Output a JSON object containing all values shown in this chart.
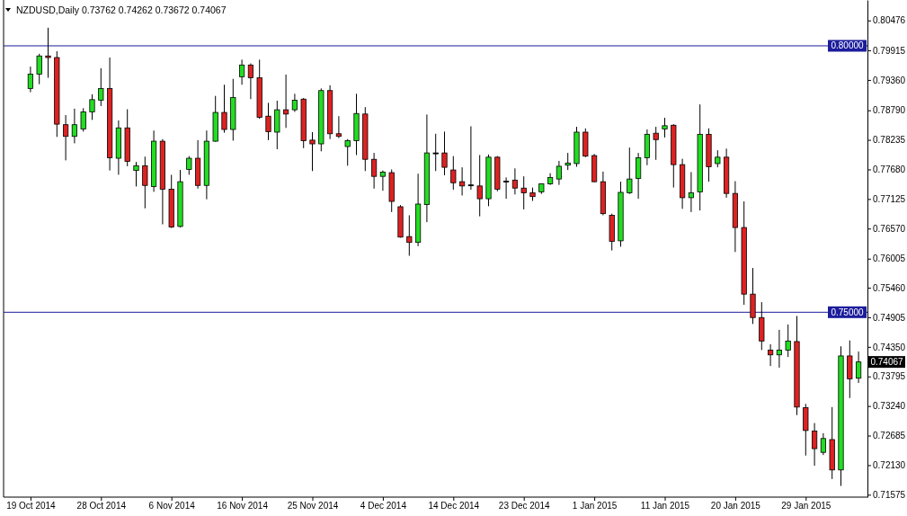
{
  "chart_data": {
    "type": "candlestick",
    "title": "NZDUSD,Daily 0.73762 0.74262 0.73672 0.74067",
    "categories": [
      "19 Oct 2014",
      null,
      null,
      null,
      null,
      null,
      null,
      null,
      "28 Oct 2014",
      null,
      null,
      null,
      null,
      null,
      null,
      null,
      "6 Nov 2014",
      null,
      null,
      null,
      null,
      null,
      null,
      null,
      "16 Nov 2014",
      null,
      null,
      null,
      null,
      null,
      null,
      null,
      "25 Nov 2014",
      null,
      null,
      null,
      null,
      null,
      null,
      null,
      "4 Dec 2014",
      null,
      null,
      null,
      null,
      null,
      null,
      null,
      "14 Dec 2014",
      null,
      null,
      null,
      null,
      null,
      null,
      null,
      "23 Dec 2014",
      null,
      null,
      null,
      null,
      null,
      null,
      null,
      "1 Jan 2015",
      null,
      null,
      null,
      null,
      null,
      null,
      null,
      "11 Jan 2015",
      null,
      null,
      null,
      null,
      null,
      null,
      null,
      "20 Jan 2015",
      null,
      null,
      null,
      null,
      null,
      null,
      null,
      "29 Jan 2015",
      null,
      null,
      null,
      null,
      null,
      null
    ],
    "ohlc": [
      [
        0.792,
        0.7961,
        0.7913,
        0.7947
      ],
      [
        0.7947,
        0.7985,
        0.7928,
        0.7981
      ],
      [
        0.7981,
        0.8034,
        0.794,
        0.7978
      ],
      [
        0.7978,
        0.799,
        0.7829,
        0.7853
      ],
      [
        0.7852,
        0.787,
        0.7785,
        0.783
      ],
      [
        0.783,
        0.7882,
        0.7817,
        0.7852
      ],
      [
        0.7844,
        0.7883,
        0.7839,
        0.7876
      ],
      [
        0.7876,
        0.7909,
        0.7861,
        0.7899
      ],
      [
        0.7898,
        0.7958,
        0.7887,
        0.792
      ],
      [
        0.792,
        0.7978,
        0.7766,
        0.779
      ],
      [
        0.7789,
        0.786,
        0.7758,
        0.7846
      ],
      [
        0.7846,
        0.7881,
        0.7774,
        0.7783
      ],
      [
        0.7766,
        0.7782,
        0.7736,
        0.7775
      ],
      [
        0.7775,
        0.7792,
        0.7695,
        0.7738
      ],
      [
        0.7736,
        0.7841,
        0.7726,
        0.7821
      ],
      [
        0.7821,
        0.7825,
        0.7665,
        0.7731
      ],
      [
        0.7731,
        0.7758,
        0.7658,
        0.766
      ],
      [
        0.7661,
        0.7767,
        0.7659,
        0.7745
      ],
      [
        0.7768,
        0.7793,
        0.7758,
        0.7789
      ],
      [
        0.7789,
        0.7823,
        0.7732,
        0.7738
      ],
      [
        0.7738,
        0.7841,
        0.7712,
        0.7821
      ],
      [
        0.7821,
        0.7906,
        0.782,
        0.7875
      ],
      [
        0.7875,
        0.7927,
        0.7837,
        0.7843
      ],
      [
        0.7843,
        0.7938,
        0.7822,
        0.7903
      ],
      [
        0.7942,
        0.7974,
        0.7927,
        0.7964
      ],
      [
        0.7964,
        0.7967,
        0.79,
        0.794
      ],
      [
        0.794,
        0.7974,
        0.7863,
        0.7866
      ],
      [
        0.7868,
        0.7893,
        0.7823,
        0.7839
      ],
      [
        0.7838,
        0.7897,
        0.7806,
        0.788
      ],
      [
        0.788,
        0.7946,
        0.7846,
        0.7872
      ],
      [
        0.788,
        0.791,
        0.7876,
        0.7898
      ],
      [
        0.79,
        0.7902,
        0.7808,
        0.7822
      ],
      [
        0.7823,
        0.7838,
        0.7765,
        0.7816
      ],
      [
        0.7816,
        0.792,
        0.7802,
        0.7916
      ],
      [
        0.7916,
        0.7926,
        0.7825,
        0.7835
      ],
      [
        0.7835,
        0.7868,
        0.7827,
        0.783
      ],
      [
        0.7811,
        0.7825,
        0.7775,
        0.7822
      ],
      [
        0.7822,
        0.791,
        0.7795,
        0.7873
      ],
      [
        0.7872,
        0.7885,
        0.7765,
        0.7787
      ],
      [
        0.7787,
        0.7799,
        0.7732,
        0.7755
      ],
      [
        0.7755,
        0.7766,
        0.7728,
        0.7763
      ],
      [
        0.7762,
        0.7768,
        0.7688,
        0.7708
      ],
      [
        0.7698,
        0.7701,
        0.764,
        0.7641
      ],
      [
        0.7642,
        0.7682,
        0.7606,
        0.7631
      ],
      [
        0.7631,
        0.776,
        0.7624,
        0.7703
      ],
      [
        0.7702,
        0.7871,
        0.7669,
        0.7799
      ],
      [
        0.7799,
        0.7835,
        0.7765,
        0.7799
      ],
      [
        0.7799,
        0.7839,
        0.7757,
        0.7772
      ],
      [
        0.7767,
        0.7793,
        0.773,
        0.7743
      ],
      [
        0.7745,
        0.7772,
        0.7719,
        0.7737
      ],
      [
        0.7739,
        0.7849,
        0.773,
        0.7739
      ],
      [
        0.7737,
        0.7795,
        0.768,
        0.7713
      ],
      [
        0.7713,
        0.7796,
        0.7699,
        0.7791
      ],
      [
        0.7791,
        0.7793,
        0.7727,
        0.7731
      ],
      [
        0.7746,
        0.7753,
        0.7713,
        0.7746
      ],
      [
        0.7748,
        0.777,
        0.7721,
        0.7733
      ],
      [
        0.7733,
        0.7755,
        0.7693,
        0.7724
      ],
      [
        0.7724,
        0.7734,
        0.7709,
        0.7717
      ],
      [
        0.7726,
        0.7742,
        0.7722,
        0.7741
      ],
      [
        0.7741,
        0.7761,
        0.7739,
        0.7753
      ],
      [
        0.775,
        0.7784,
        0.7739,
        0.7774
      ],
      [
        0.7776,
        0.7799,
        0.7767,
        0.778
      ],
      [
        0.7779,
        0.7848,
        0.7773,
        0.7838
      ],
      [
        0.7838,
        0.7845,
        0.7791,
        0.7793
      ],
      [
        0.7794,
        0.7797,
        0.7744,
        0.7745
      ],
      [
        0.7745,
        0.7764,
        0.7682,
        0.7685
      ],
      [
        0.7682,
        0.7685,
        0.7616,
        0.7633
      ],
      [
        0.7634,
        0.7745,
        0.7623,
        0.7725
      ],
      [
        0.7724,
        0.7809,
        0.7722,
        0.775
      ],
      [
        0.7751,
        0.7799,
        0.7713,
        0.779
      ],
      [
        0.779,
        0.7843,
        0.7776,
        0.7834
      ],
      [
        0.7836,
        0.7848,
        0.7786,
        0.7824
      ],
      [
        0.7844,
        0.7865,
        0.7828,
        0.785
      ],
      [
        0.7851,
        0.7853,
        0.7734,
        0.7777
      ],
      [
        0.7777,
        0.7788,
        0.7694,
        0.7715
      ],
      [
        0.7715,
        0.7763,
        0.7688,
        0.7724
      ],
      [
        0.7726,
        0.789,
        0.7691,
        0.7834
      ],
      [
        0.7834,
        0.7845,
        0.7745,
        0.7773
      ],
      [
        0.7779,
        0.7804,
        0.7772,
        0.7791
      ],
      [
        0.7791,
        0.7807,
        0.7715,
        0.7723
      ],
      [
        0.7723,
        0.7746,
        0.7613,
        0.7659
      ],
      [
        0.7659,
        0.7708,
        0.7514,
        0.7534
      ],
      [
        0.7534,
        0.7583,
        0.7478,
        0.749
      ],
      [
        0.749,
        0.7519,
        0.7429,
        0.7446
      ],
      [
        0.7429,
        0.744,
        0.7399,
        0.742
      ],
      [
        0.742,
        0.7467,
        0.7396,
        0.7429
      ],
      [
        0.7429,
        0.7477,
        0.7416,
        0.7446
      ],
      [
        0.7445,
        0.7493,
        0.7307,
        0.7322
      ],
      [
        0.7321,
        0.7328,
        0.7231,
        0.7278
      ],
      [
        0.7277,
        0.7292,
        0.7212,
        0.7244
      ],
      [
        0.7237,
        0.7273,
        0.7232,
        0.7263
      ],
      [
        0.7261,
        0.7322,
        0.7187,
        0.7204
      ],
      [
        0.7204,
        0.7436,
        0.7174,
        0.7418
      ],
      [
        0.7418,
        0.7447,
        0.7339,
        0.7375
      ],
      [
        0.73762,
        0.74262,
        0.73672,
        0.74067
      ]
    ],
    "colors": [
      "#22dd22",
      "#22dd22",
      "#dd2222",
      "#dd2222",
      "#dd2222",
      "#22dd22",
      "#22dd22",
      "#22dd22",
      "#22dd22",
      "#dd2222",
      "#22dd22",
      "#dd2222",
      "#22dd22",
      "#dd2222",
      "#22dd22",
      "#dd2222",
      "#dd2222",
      "#22dd22",
      "#22dd22",
      "#dd2222",
      "#22dd22",
      "#22dd22",
      "#dd2222",
      "#22dd22",
      "#22dd22",
      "#dd2222",
      "#dd2222",
      "#dd2222",
      "#22dd22",
      "#dd2222",
      "#22dd22",
      "#dd2222",
      "#dd2222",
      "#22dd22",
      "#dd2222",
      "#dd2222",
      "#22dd22",
      "#22dd22",
      "#dd2222",
      "#dd2222",
      "#22dd22",
      "#dd2222",
      "#dd2222",
      "#dd2222",
      "#22dd22",
      "#22dd22",
      "#000000",
      "#dd2222",
      "#dd2222",
      "#dd2222",
      "#000000",
      "#dd2222",
      "#22dd22",
      "#dd2222",
      "#000000",
      "#dd2222",
      "#dd2222",
      "#dd2222",
      "#22dd22",
      "#22dd22",
      "#22dd22",
      "#22dd22",
      "#22dd22",
      "#dd2222",
      "#dd2222",
      "#dd2222",
      "#dd2222",
      "#22dd22",
      "#22dd22",
      "#22dd22",
      "#22dd22",
      "#dd2222",
      "#22dd22",
      "#dd2222",
      "#dd2222",
      "#22dd22",
      "#22dd22",
      "#dd2222",
      "#22dd22",
      "#dd2222",
      "#dd2222",
      "#dd2222",
      "#dd2222",
      "#dd2222",
      "#dd2222",
      "#22dd22",
      "#22dd22",
      "#dd2222",
      "#dd2222",
      "#dd2222",
      "#22dd22",
      "#dd2222",
      "#22dd22",
      "#dd2222",
      "#22dd22"
    ],
    "ylim": [
      0.7153,
      0.8086
    ],
    "yticks": [
      {
        "value": 0.80476,
        "label": "0.80476"
      },
      {
        "value": 0.79915,
        "label": "0.79915"
      },
      {
        "value": 0.7936,
        "label": "0.79360"
      },
      {
        "value": 0.7879,
        "label": "0.78790"
      },
      {
        "value": 0.78235,
        "label": "0.78235"
      },
      {
        "value": 0.7768,
        "label": "0.77680"
      },
      {
        "value": 0.77125,
        "label": "0.77125"
      },
      {
        "value": 0.7657,
        "label": "0.76570"
      },
      {
        "value": 0.76005,
        "label": "0.76005"
      },
      {
        "value": 0.7546,
        "label": "0.75460"
      },
      {
        "value": 0.74905,
        "label": "0.74905"
      },
      {
        "value": 0.7435,
        "label": "0.74350"
      },
      {
        "value": 0.73795,
        "label": "0.73795"
      },
      {
        "value": 0.7324,
        "label": "0.73240"
      },
      {
        "value": 0.72685,
        "label": "0.72685"
      },
      {
        "value": 0.7213,
        "label": "0.72130"
      },
      {
        "value": 0.71575,
        "label": "0.71575"
      }
    ],
    "ref_lines": [
      {
        "axis": "y",
        "value": 0.8,
        "label": "0.80000",
        "color": "#1c1c9c"
      },
      {
        "axis": "y",
        "value": 0.75,
        "label": "0.75000",
        "color": "#1c1c9c"
      }
    ],
    "annotations": [
      "0.74067"
    ]
  }
}
